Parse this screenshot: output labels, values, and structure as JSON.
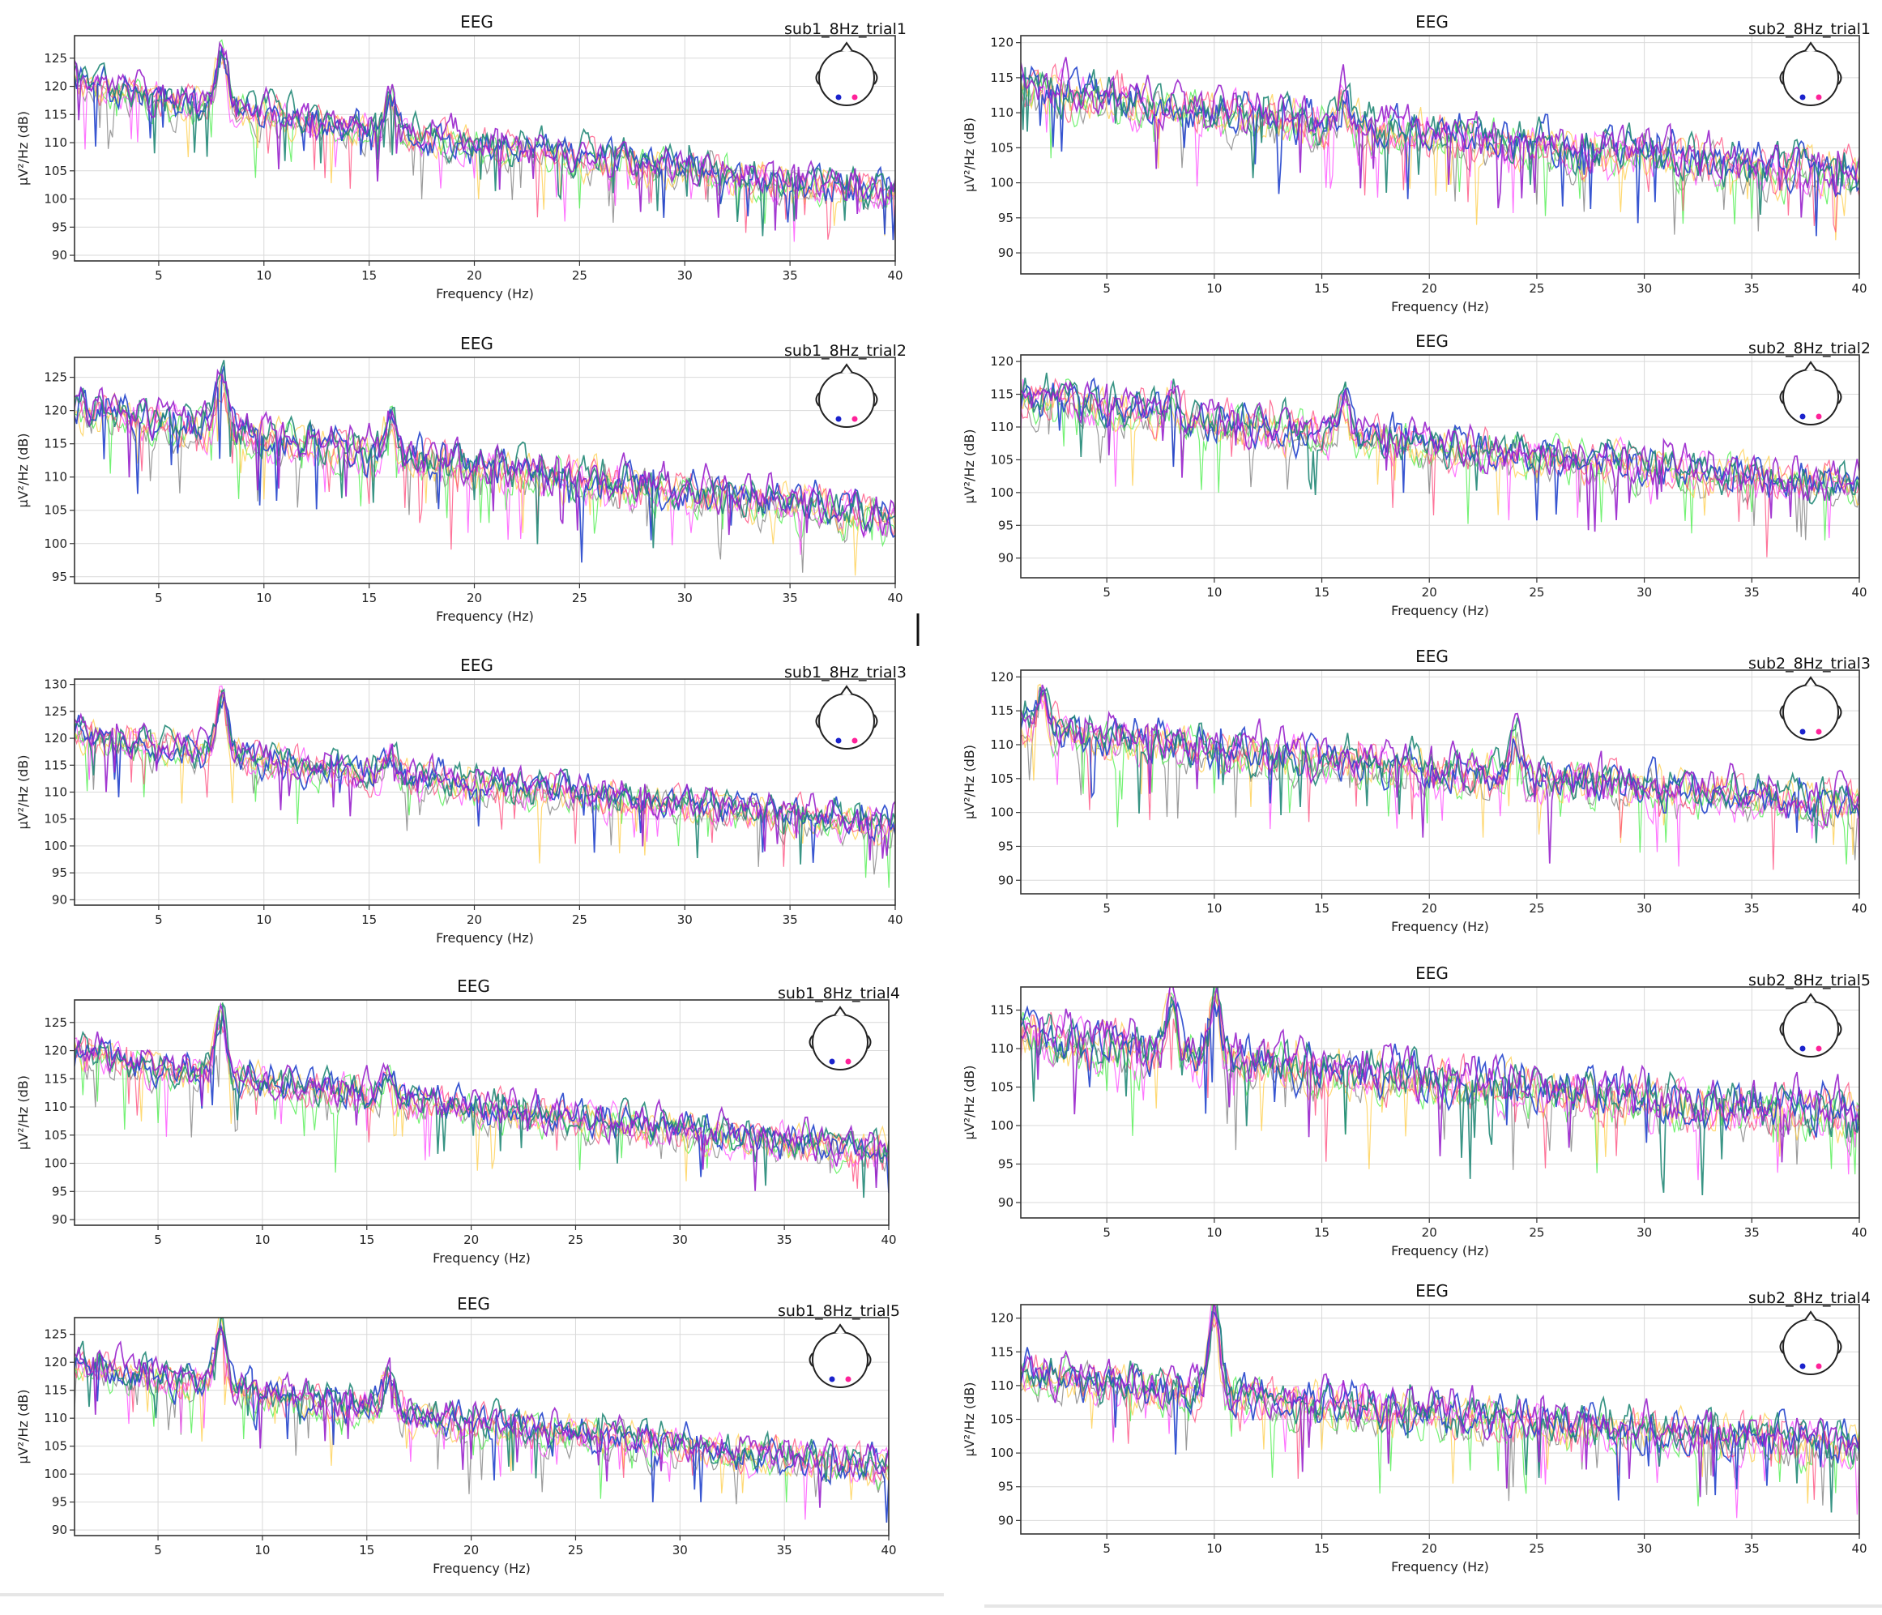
{
  "colors": {
    "series": [
      "#7a7a7a",
      "#44ee44",
      "#ff44ff",
      "#ffcc44",
      "#ff4477",
      "#2244cc",
      "#228877",
      "#9922cc"
    ],
    "grid": "#d9d9d9",
    "axes": "#333333",
    "sensor_left": "#1a22cc",
    "sensor_right": "#ff2299"
  },
  "chart_data": [
    {
      "id": "sub1-trial1",
      "type": "line",
      "title": "EEG",
      "trial_label": "sub1_8Hz_trial1",
      "xlabel": "Frequency (Hz)",
      "ylabel": "µV²/Hz (dB)",
      "xlim": [
        1,
        40
      ],
      "ylim": [
        89,
        129
      ],
      "xticks": [
        5,
        10,
        15,
        20,
        25,
        30,
        35,
        40
      ],
      "yticks": [
        90,
        95,
        100,
        105,
        110,
        115,
        120,
        125
      ],
      "grid": true,
      "sensor_inset": "top-right",
      "trend": {
        "start": 121,
        "end": 101
      },
      "peaks": [
        {
          "freq": 8,
          "value": 127
        },
        {
          "freq": 16,
          "value": 118
        }
      ]
    },
    {
      "id": "sub1-trial2",
      "type": "line",
      "title": "EEG",
      "trial_label": "sub1_8Hz_trial2",
      "xlabel": "Frequency (Hz)",
      "ylabel": "µV²/Hz (dB)",
      "xlim": [
        1,
        40
      ],
      "ylim": [
        94,
        128
      ],
      "xticks": [
        5,
        10,
        15,
        20,
        25,
        30,
        35,
        40
      ],
      "yticks": [
        95,
        100,
        105,
        110,
        115,
        120,
        125
      ],
      "grid": true,
      "sensor_inset": "top-right",
      "trend": {
        "start": 121,
        "end": 104
      },
      "peaks": [
        {
          "freq": 8,
          "value": 125
        },
        {
          "freq": 16,
          "value": 118
        }
      ]
    },
    {
      "id": "sub1-trial3",
      "type": "line",
      "title": "EEG",
      "trial_label": "sub1_8Hz_trial3",
      "xlabel": "Frequency (Hz)",
      "ylabel": "µV²/Hz (dB)",
      "xlim": [
        1,
        40
      ],
      "ylim": [
        89,
        131
      ],
      "xticks": [
        5,
        10,
        15,
        20,
        25,
        30,
        35,
        40
      ],
      "yticks": [
        90,
        95,
        100,
        105,
        110,
        115,
        120,
        125,
        130
      ],
      "grid": true,
      "sensor_inset": "top-right",
      "trend": {
        "start": 121,
        "end": 104
      },
      "peaks": [
        {
          "freq": 8,
          "value": 128
        },
        {
          "freq": 16,
          "value": 117
        }
      ]
    },
    {
      "id": "sub1-trial4",
      "type": "line",
      "title": "EEG",
      "trial_label": "sub1_8Hz_trial4",
      "xlabel": "Frequency (Hz)",
      "ylabel": "µV²/Hz (dB)",
      "xlim": [
        1,
        40
      ],
      "ylim": [
        89,
        129
      ],
      "xticks": [
        5,
        10,
        15,
        20,
        25,
        30,
        35,
        40
      ],
      "yticks": [
        90,
        95,
        100,
        105,
        110,
        115,
        120,
        125
      ],
      "grid": true,
      "sensor_inset": "top-right",
      "trend": {
        "start": 120,
        "end": 102
      },
      "peaks": [
        {
          "freq": 8,
          "value": 127
        },
        {
          "freq": 16,
          "value": 116
        }
      ]
    },
    {
      "id": "sub1-trial5",
      "type": "line",
      "title": "EEG",
      "trial_label": "sub1_8Hz_trial5",
      "xlabel": "Frequency (Hz)",
      "ylabel": "µV²/Hz (dB)",
      "xlim": [
        1,
        40
      ],
      "ylim": [
        89,
        128
      ],
      "xticks": [
        5,
        10,
        15,
        20,
        25,
        30,
        35,
        40
      ],
      "yticks": [
        90,
        95,
        100,
        105,
        110,
        115,
        120,
        125
      ],
      "grid": true,
      "sensor_inset": "top-right",
      "trend": {
        "start": 120,
        "end": 101
      },
      "peaks": [
        {
          "freq": 8,
          "value": 127
        },
        {
          "freq": 16,
          "value": 118
        }
      ]
    },
    {
      "id": "sub2-trial1",
      "type": "line",
      "title": "EEG",
      "trial_label": "sub2_8Hz_trial1",
      "xlabel": "Frequency (Hz)",
      "ylabel": "µV²/Hz (dB)",
      "xlim": [
        1,
        40
      ],
      "ylim": [
        87,
        121
      ],
      "xticks": [
        5,
        10,
        15,
        20,
        25,
        30,
        35,
        40
      ],
      "yticks": [
        90,
        95,
        100,
        105,
        110,
        115,
        120
      ],
      "grid": true,
      "sensor_inset": "top-right",
      "trend": {
        "start": 114,
        "end": 101
      },
      "peaks": [
        {
          "freq": 16,
          "value": 112
        }
      ]
    },
    {
      "id": "sub2-trial2",
      "type": "line",
      "title": "EEG",
      "trial_label": "sub2_8Hz_trial2",
      "xlabel": "Frequency (Hz)",
      "ylabel": "µV²/Hz (dB)",
      "xlim": [
        1,
        40
      ],
      "ylim": [
        87,
        121
      ],
      "xticks": [
        5,
        10,
        15,
        20,
        25,
        30,
        35,
        40
      ],
      "yticks": [
        90,
        95,
        100,
        105,
        110,
        115,
        120
      ],
      "grid": true,
      "sensor_inset": "top-right",
      "trend": {
        "start": 115,
        "end": 101
      },
      "peaks": [
        {
          "freq": 8,
          "value": 115
        },
        {
          "freq": 16,
          "value": 114
        }
      ]
    },
    {
      "id": "sub2-trial3",
      "type": "line",
      "title": "EEG",
      "trial_label": "sub2_8Hz_trial3",
      "xlabel": "Frequency (Hz)",
      "ylabel": "µV²/Hz (dB)",
      "xlim": [
        1,
        40
      ],
      "ylim": [
        88,
        121
      ],
      "xticks": [
        5,
        10,
        15,
        20,
        25,
        30,
        35,
        40
      ],
      "yticks": [
        90,
        95,
        100,
        105,
        110,
        115,
        120
      ],
      "grid": true,
      "sensor_inset": "top-right",
      "trend": {
        "start": 113,
        "end": 101
      },
      "peaks": [
        {
          "freq": 2,
          "value": 118
        },
        {
          "freq": 24,
          "value": 111
        }
      ]
    },
    {
      "id": "sub2-trial5",
      "type": "line",
      "title": "EEG",
      "trial_label": "sub2_8Hz_trial5",
      "xlabel": "Frequency (Hz)",
      "ylabel": "µV²/Hz (dB)",
      "xlim": [
        1,
        40
      ],
      "ylim": [
        88,
        118
      ],
      "xticks": [
        5,
        10,
        15,
        20,
        25,
        30,
        35,
        40
      ],
      "yticks": [
        90,
        95,
        100,
        105,
        110,
        115
      ],
      "grid": true,
      "sensor_inset": "top-right",
      "trend": {
        "start": 112,
        "end": 101
      },
      "peaks": [
        {
          "freq": 8,
          "value": 117
        },
        {
          "freq": 10,
          "value": 116
        }
      ]
    },
    {
      "id": "sub2-trial4",
      "type": "line",
      "title": "EEG",
      "trial_label": "sub2_8Hz_trial4",
      "xlabel": "Frequency (Hz)",
      "ylabel": "µV²/Hz (dB)",
      "xlim": [
        1,
        40
      ],
      "ylim": [
        88,
        122
      ],
      "xticks": [
        5,
        10,
        15,
        20,
        25,
        30,
        35,
        40
      ],
      "yticks": [
        90,
        95,
        100,
        105,
        110,
        115,
        120
      ],
      "grid": true,
      "sensor_inset": "top-right",
      "trend": {
        "start": 112,
        "end": 101
      },
      "peaks": [
        {
          "freq": 10,
          "value": 121
        }
      ]
    }
  ]
}
